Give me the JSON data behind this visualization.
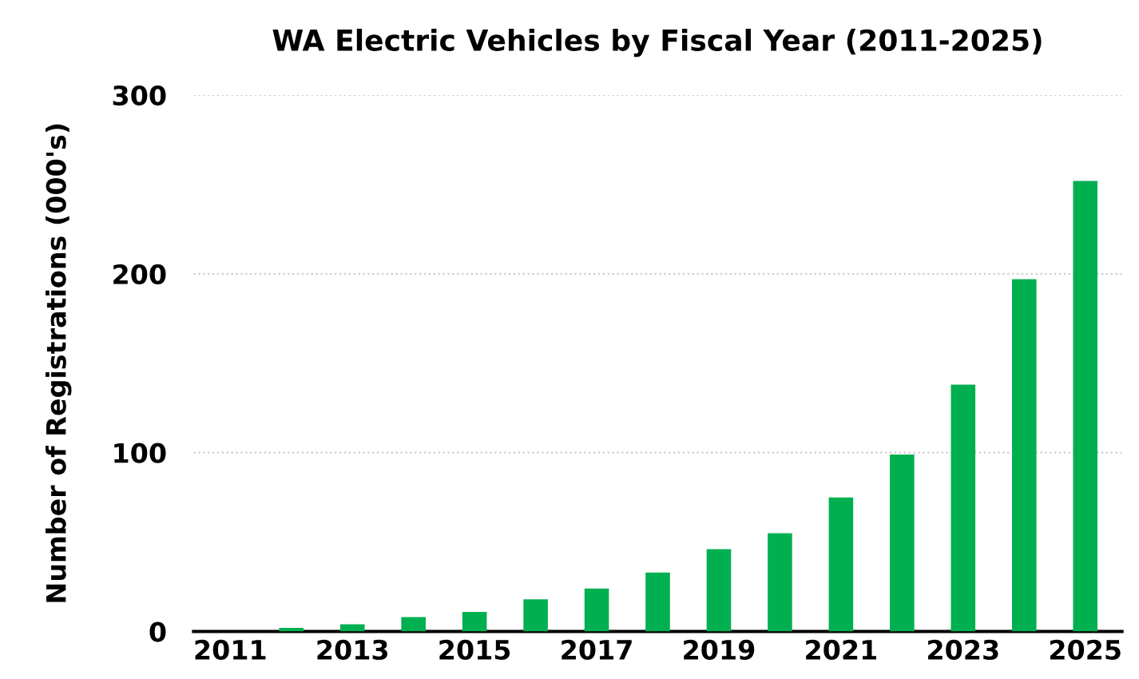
{
  "chart_data": {
    "type": "bar",
    "title": "WA Electric Vehicles by Fiscal Year (2011-2025)",
    "ylabel": "Number of Registrations (000's)",
    "categories": [
      "2011",
      null,
      "2013",
      null,
      "2015",
      null,
      "2017",
      null,
      "2019",
      null,
      "2021",
      null,
      "2023",
      null,
      "2025"
    ],
    "values": [
      null,
      2,
      4,
      8,
      11,
      18,
      24,
      33,
      46,
      55,
      75,
      99,
      138,
      197,
      252
    ],
    "color": "#00b050",
    "ylim": [
      0,
      300
    ],
    "yticks": [
      0,
      100,
      200,
      300
    ],
    "grid": "y"
  }
}
